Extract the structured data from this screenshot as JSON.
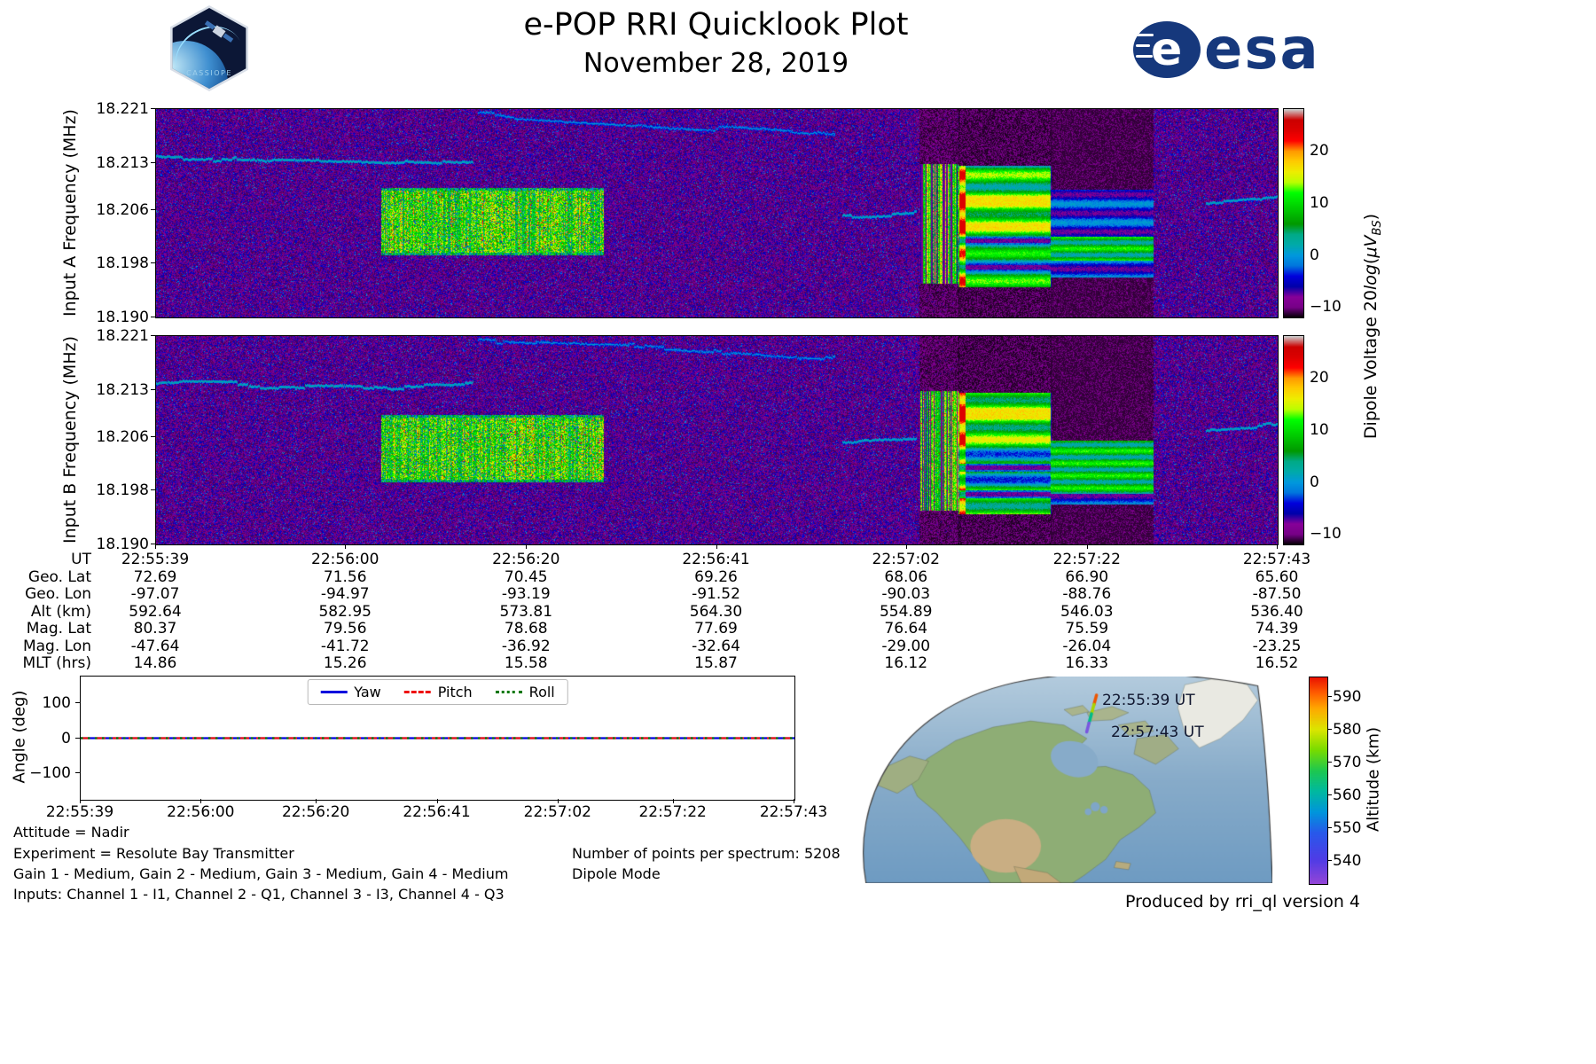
{
  "header": {
    "title": "e-POP RRI Quicklook Plot",
    "subtitle": "November 28, 2019",
    "esa_wordmark": "esa",
    "patch_text": "CASSIOPE"
  },
  "dipole_colorbar_label": {
    "prefix": "Dipole Voltage 20",
    "func": "log",
    "open": "(",
    "unit": "μV",
    "sub": "BS",
    "close": ")"
  },
  "chart_data": [
    {
      "type": "heatmap",
      "name": "input-a-spectrogram",
      "ylabel": "Input A Frequency (MHz)",
      "ylim": [
        18.19,
        18.221
      ],
      "y_ticks": [
        "18.221",
        "18.213",
        "18.206",
        "18.198",
        "18.190"
      ],
      "x_ticks_ut": [
        "22:55:39",
        "22:56:00",
        "22:56:20",
        "22:56:41",
        "22:57:02",
        "22:57:22",
        "22:57:43"
      ],
      "colormap": "nipy_spectral",
      "colorbar": {
        "vmin": -12,
        "vmax": 28,
        "ticks": [
          "20",
          "10",
          "0",
          "−10"
        ],
        "tick_values": [
          20,
          10,
          0,
          -10
        ]
      },
      "features": [
        {
          "kind": "carrier-trace",
          "x": [
            0.0,
            0.283
          ],
          "freq": 18.214,
          "drift": -0.0004,
          "strength": 0.34
        },
        {
          "kind": "carrier-trace",
          "x": [
            0.287,
            0.605
          ],
          "freq": 18.2206,
          "drift": -0.0032,
          "strength": 0.28
        },
        {
          "kind": "broadband-block",
          "x": [
            0.201,
            0.399
          ],
          "freq": [
            18.1992,
            18.2092
          ]
        },
        {
          "kind": "carrier-trace",
          "x": [
            0.612,
            0.678
          ],
          "freq": 18.2052,
          "drift": 0.0004,
          "strength": 0.33
        },
        {
          "kind": "striped-burst",
          "x": [
            0.681,
            0.716
          ],
          "freq": [
            18.195,
            18.2128
          ]
        },
        {
          "kind": "banded-emission",
          "x": [
            0.716,
            0.798
          ],
          "freq": [
            18.1945,
            18.2125
          ],
          "dark_lines": [
            18.2015,
            18.1975
          ],
          "hot_streak": [
            0.7165,
            0.7215
          ]
        },
        {
          "kind": "banded-emission-dim",
          "x": [
            0.798,
            0.889
          ],
          "freq": [
            18.196,
            18.209
          ],
          "bright_band": [
            18.1985,
            18.202
          ]
        },
        {
          "kind": "carrier-trace",
          "x": [
            0.936,
            1.0
          ],
          "freq": 18.207,
          "drift": 0.0006,
          "strength": 0.33
        }
      ]
    },
    {
      "type": "heatmap",
      "name": "input-b-spectrogram",
      "ylabel": "Input B Frequency (MHz)",
      "ylim": [
        18.19,
        18.221
      ],
      "y_ticks": [
        "18.221",
        "18.213",
        "18.206",
        "18.198",
        "18.190"
      ],
      "x_ticks_ut": [
        "22:55:39",
        "22:56:00",
        "22:56:20",
        "22:56:41",
        "22:57:02",
        "22:57:22",
        "22:57:43"
      ],
      "colormap": "nipy_spectral",
      "colorbar": {
        "vmin": -12,
        "vmax": 28,
        "ticks": [
          "20",
          "10",
          "0",
          "−10"
        ],
        "tick_values": [
          20,
          10,
          0,
          -10
        ]
      },
      "features": [
        {
          "kind": "carrier-trace",
          "x": [
            0.0,
            0.283
          ],
          "freq": 18.214,
          "drift": -0.0004,
          "strength": 0.34
        },
        {
          "kind": "carrier-trace",
          "x": [
            0.287,
            0.605
          ],
          "freq": 18.2206,
          "drift": -0.0032,
          "strength": 0.28
        },
        {
          "kind": "broadband-block",
          "x": [
            0.201,
            0.399
          ],
          "freq": [
            18.1992,
            18.2092
          ]
        },
        {
          "kind": "carrier-trace",
          "x": [
            0.612,
            0.678
          ],
          "freq": 18.2052,
          "drift": 0.0004,
          "strength": 0.33
        },
        {
          "kind": "striped-burst",
          "x": [
            0.681,
            0.716
          ],
          "freq": [
            18.195,
            18.2128
          ]
        },
        {
          "kind": "banded-emission",
          "x": [
            0.716,
            0.798
          ],
          "freq": [
            18.1945,
            18.2125
          ],
          "dark_lines": [
            18.2015,
            18.1975
          ],
          "hot_streak": [
            0.7165,
            0.7215
          ]
        },
        {
          "kind": "banded-emission-dim",
          "x": [
            0.798,
            0.889
          ],
          "freq": [
            18.196,
            18.2055
          ],
          "bright_band": [
            18.1975,
            18.2055
          ]
        },
        {
          "kind": "carrier-trace",
          "x": [
            0.936,
            1.0
          ],
          "freq": 18.207,
          "drift": 0.0006,
          "strength": 0.33
        }
      ]
    },
    {
      "type": "line",
      "name": "attitude-angles",
      "ylabel": "Angle (deg)",
      "ylim": [
        -178,
        178
      ],
      "y_ticks": [
        "100",
        "0",
        "−100"
      ],
      "y_tick_values": [
        100,
        0,
        -100
      ],
      "x_ticks": [
        "22:55:39",
        "22:56:00",
        "22:56:20",
        "22:56:41",
        "22:57:02",
        "22:57:22",
        "22:57:43"
      ],
      "legend_position": "upper center",
      "series": [
        {
          "name": "Yaw",
          "color": "#0000dd",
          "style": "solid",
          "values": [
            0,
            0,
            0,
            0,
            0,
            0,
            0
          ]
        },
        {
          "name": "Pitch",
          "color": "#ee1111",
          "style": "dashed",
          "values": [
            0,
            0,
            0,
            0,
            0,
            0,
            0
          ]
        },
        {
          "name": "Roll",
          "color": "#007700",
          "style": "dotted",
          "values": [
            0,
            0,
            0,
            0,
            0,
            0,
            0
          ]
        }
      ]
    },
    {
      "type": "map",
      "name": "ground-track-map",
      "region": "North America, orthographic-style projection",
      "track_start_label": "22:55:39 UT",
      "track_end_label": "22:57:43 UT",
      "track_altitude_km": [
        592.64,
        536.4
      ],
      "colorbar": {
        "label": "Altitude (km)",
        "vmin": 533,
        "vmax": 596,
        "ticks": [
          "590",
          "580",
          "570",
          "560",
          "550",
          "540"
        ],
        "tick_values": [
          590,
          580,
          570,
          560,
          550,
          540
        ]
      }
    }
  ],
  "xaxis_table": {
    "rows": [
      {
        "label": "UT",
        "values": [
          "22:55:39",
          "22:56:00",
          "22:56:20",
          "22:56:41",
          "22:57:02",
          "22:57:22",
          "22:57:43"
        ]
      },
      {
        "label": "Geo. Lat",
        "values": [
          "72.69",
          "71.56",
          "70.45",
          "69.26",
          "68.06",
          "66.90",
          "65.60"
        ]
      },
      {
        "label": "Geo. Lon",
        "values": [
          "-97.07",
          "-94.97",
          "-93.19",
          "-91.52",
          "-90.03",
          "-88.76",
          "-87.50"
        ]
      },
      {
        "label": "Alt (km)",
        "values": [
          "592.64",
          "582.95",
          "573.81",
          "564.30",
          "554.89",
          "546.03",
          "536.40"
        ]
      },
      {
        "label": "Mag. Lat",
        "values": [
          "80.37",
          "79.56",
          "78.68",
          "77.69",
          "76.64",
          "75.59",
          "74.39"
        ]
      },
      {
        "label": "Mag. Lon",
        "values": [
          "-47.64",
          "-41.72",
          "-36.92",
          "-32.64",
          "-29.00",
          "-26.04",
          "-23.25"
        ]
      },
      {
        "label": "MLT (hrs)",
        "values": [
          "14.86",
          "15.26",
          "15.58",
          "15.87",
          "16.12",
          "16.33",
          "16.52"
        ]
      }
    ]
  },
  "annotations": {
    "attitude": "Attitude = Nadir",
    "experiment": "Experiment = Resolute Bay Transmitter",
    "gains": "Gain 1 - Medium, Gain 2 - Medium, Gain 3 - Medium, Gain 4 - Medium",
    "inputs": "Inputs: Channel 1 - I1, Channel 2 - Q1, Channel 3 - I3, Channel 4 - Q3",
    "points": "Number of points per spectrum: 5208",
    "mode": "Dipole Mode"
  },
  "credit": "Produced by rri_ql version 4",
  "colors": {
    "esa_blue": "#16387c",
    "yaw": "#0000dd",
    "pitch": "#ee1111",
    "roll": "#007700",
    "ocean": "#87abc9",
    "land_green": "#8ead75",
    "land_tan": "#c9ae83",
    "greenland_ice": "#e9e9e2"
  }
}
